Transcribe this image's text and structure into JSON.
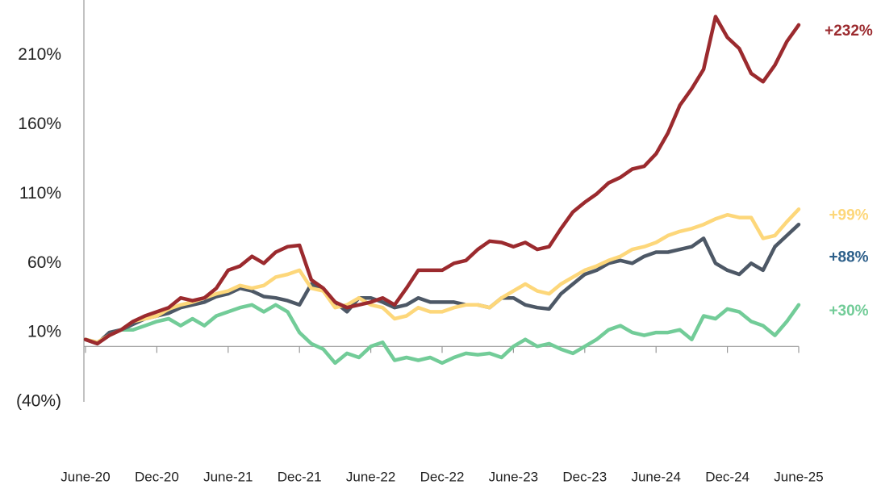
{
  "chart_data": {
    "type": "line",
    "categories": [
      "June-20",
      null,
      null,
      null,
      null,
      null,
      "Dec-20",
      null,
      null,
      null,
      null,
      null,
      "June-21",
      null,
      null,
      null,
      null,
      null,
      "Dec-21",
      null,
      null,
      null,
      null,
      null,
      "June-22",
      null,
      null,
      null,
      null,
      null,
      "Dec-22",
      null,
      null,
      null,
      null,
      null,
      "June-23",
      null,
      null,
      null,
      null,
      null,
      "Dec-23",
      null,
      null,
      null,
      null,
      null,
      "June-24",
      null,
      null,
      null,
      null,
      null,
      "Dec-24",
      null,
      null,
      null,
      null,
      null,
      "June-25"
    ],
    "ylim": [
      -40,
      250
    ],
    "yticks": [
      {
        "value": 210,
        "label": "210%"
      },
      {
        "value": 160,
        "label": "160%"
      },
      {
        "value": 110,
        "label": "110%"
      },
      {
        "value": 60,
        "label": "60%"
      },
      {
        "value": 10,
        "label": "10%"
      },
      {
        "value": -40,
        "label": "(40%)"
      }
    ],
    "grid": false,
    "series": [
      {
        "color": "#9b2a2e",
        "end_label": "+232%",
        "end_label_color": "#9b2a2e",
        "values": [
          5,
          2,
          8,
          12,
          18,
          22,
          25,
          28,
          35,
          33,
          35,
          42,
          55,
          58,
          65,
          60,
          68,
          72,
          73,
          48,
          42,
          32,
          28,
          30,
          32,
          35,
          30,
          42,
          55,
          55,
          55,
          60,
          62,
          70,
          76,
          75,
          72,
          75,
          70,
          72,
          85,
          97,
          104,
          110,
          118,
          122,
          128,
          130,
          139,
          154,
          174,
          186,
          200,
          238,
          223,
          215,
          197,
          191,
          203,
          220,
          232
        ]
      },
      {
        "color": "#fdd77a",
        "end_label": "+99%",
        "end_label_color": "#fdd77a",
        "values": [
          5,
          3,
          8,
          12,
          18,
          20,
          22,
          27,
          30,
          32,
          35,
          38,
          40,
          44,
          42,
          44,
          50,
          52,
          55,
          42,
          40,
          28,
          30,
          35,
          30,
          28,
          20,
          22,
          28,
          25,
          25,
          28,
          30,
          30,
          28,
          35,
          40,
          45,
          40,
          38,
          45,
          50,
          55,
          58,
          62,
          65,
          70,
          72,
          75,
          80,
          83,
          85,
          88,
          92,
          95,
          93,
          93,
          78,
          80,
          90,
          99
        ]
      },
      {
        "color": "#4d5866",
        "end_label": "+88%",
        "end_label_color": "#2d5f8a",
        "values": [
          5,
          2,
          10,
          12,
          16,
          20,
          22,
          24,
          28,
          30,
          32,
          36,
          38,
          42,
          40,
          36,
          35,
          33,
          30,
          45,
          40,
          32,
          25,
          35,
          35,
          32,
          28,
          30,
          35,
          32,
          32,
          32,
          30,
          30,
          28,
          35,
          35,
          30,
          28,
          27,
          38,
          45,
          52,
          55,
          60,
          62,
          60,
          65,
          68,
          68,
          70,
          72,
          78,
          60,
          55,
          52,
          60,
          55,
          72,
          80,
          88
        ]
      },
      {
        "color": "#72cc98",
        "end_label": "+30%",
        "end_label_color": "#72cc98",
        "values": [
          5,
          3,
          8,
          12,
          12,
          15,
          18,
          20,
          15,
          20,
          15,
          22,
          25,
          28,
          30,
          25,
          30,
          25,
          10,
          2,
          -2,
          -12,
          -5,
          -8,
          0,
          3,
          -10,
          -8,
          -10,
          -8,
          -12,
          -8,
          -5,
          -6,
          -5,
          -8,
          0,
          5,
          0,
          2,
          -2,
          -5,
          0,
          5,
          12,
          15,
          10,
          8,
          10,
          10,
          12,
          5,
          22,
          20,
          27,
          25,
          18,
          15,
          8,
          18,
          30
        ]
      }
    ]
  }
}
